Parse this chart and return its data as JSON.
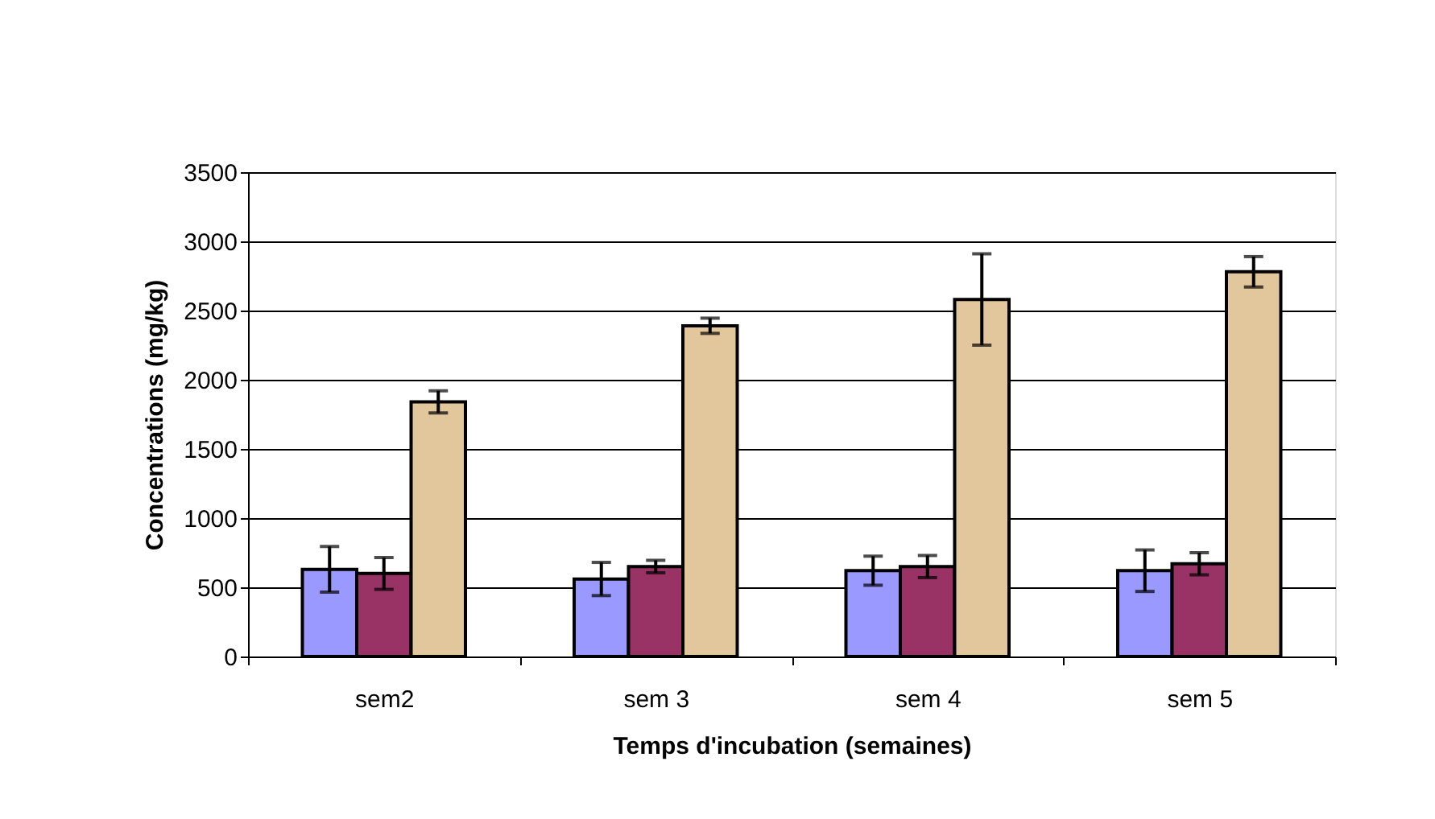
{
  "chart_data": {
    "type": "bar",
    "xlabel": "Temps d'incubation (semaines)",
    "ylabel": "Concentrations (mg/kg)",
    "categories": [
      "sem2",
      "sem 3",
      "sem 4",
      "sem 5"
    ],
    "series": [
      {
        "color": "#9999ff",
        "values": [
          630,
          560,
          620,
          620
        ],
        "errors": [
          165,
          120,
          105,
          150
        ]
      },
      {
        "color": "#993366",
        "values": [
          600,
          650,
          650,
          670
        ],
        "errors": [
          115,
          45,
          80,
          80
        ]
      },
      {
        "color": "#e2c69c",
        "values": [
          1840,
          2390,
          2580,
          2780
        ],
        "errors": [
          80,
          55,
          330,
          110
        ]
      }
    ],
    "ylim": [
      0,
      3500
    ],
    "yticks": [
      0,
      500,
      1000,
      1500,
      2000,
      2500,
      3000,
      3500
    ],
    "grid": "y",
    "legend": false
  }
}
